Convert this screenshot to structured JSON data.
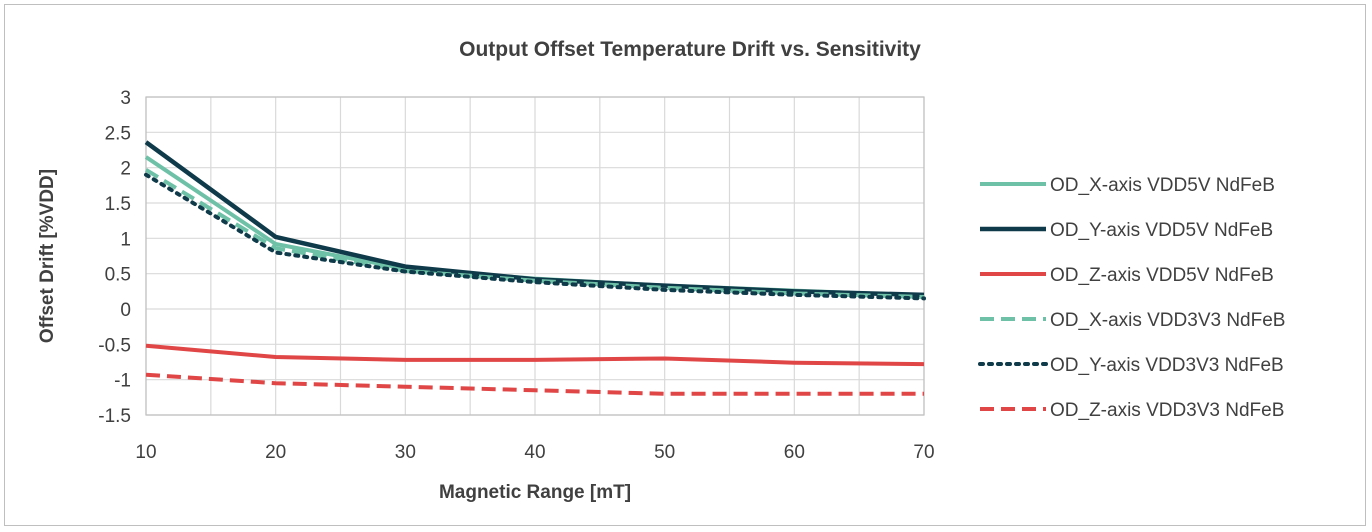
{
  "chart_data": {
    "type": "line",
    "title": "Output Offset Temperature Drift vs. Sensitivity",
    "xlabel": "Magnetic Range [mT]",
    "ylabel": "Offset Drift [%VDD]",
    "xlim": [
      10,
      70
    ],
    "ylim": [
      -1.5,
      3
    ],
    "x_ticks": [
      10,
      20,
      30,
      40,
      50,
      60,
      70
    ],
    "y_ticks": [
      -1.5,
      -1,
      -0.5,
      0,
      0.5,
      1,
      1.5,
      2,
      2.5,
      3
    ],
    "grid": true,
    "legend_position": "right",
    "x": [
      10,
      20,
      30,
      40,
      50,
      60,
      70
    ],
    "series": [
      {
        "name": "OD_X-axis VDD5V NdFeB",
        "values": [
          2.15,
          0.92,
          0.57,
          0.43,
          0.33,
          0.26,
          0.19
        ],
        "color": "#6ec1a7",
        "style": "solid",
        "width": 4
      },
      {
        "name": "OD_Y-axis VDD5V NdFeB",
        "values": [
          2.36,
          1.02,
          0.6,
          0.42,
          0.33,
          0.25,
          0.2
        ],
        "color": "#0e3a4a",
        "style": "solid",
        "width": 4.5
      },
      {
        "name": "OD_Z-axis VDD5V NdFeB",
        "values": [
          -0.52,
          -0.68,
          -0.72,
          -0.72,
          -0.7,
          -0.76,
          -0.78
        ],
        "color": "#e04646",
        "style": "solid",
        "width": 4
      },
      {
        "name": "OD_X-axis VDD3V3 NdFeB",
        "values": [
          1.97,
          0.86,
          0.54,
          0.4,
          0.3,
          0.22,
          0.17
        ],
        "color": "#6ec1a7",
        "style": "dashed",
        "width": 4
      },
      {
        "name": "OD_Y-axis VDD3V3 NdFeB",
        "values": [
          1.9,
          0.8,
          0.53,
          0.38,
          0.27,
          0.2,
          0.15
        ],
        "color": "#0e3a4a",
        "style": "dotted",
        "width": 4
      },
      {
        "name": "OD_Z-axis VDD3V3 NdFeB",
        "values": [
          -0.93,
          -1.05,
          -1.1,
          -1.15,
          -1.2,
          -1.2,
          -1.2
        ],
        "color": "#e04646",
        "style": "dashed",
        "width": 4
      }
    ]
  }
}
